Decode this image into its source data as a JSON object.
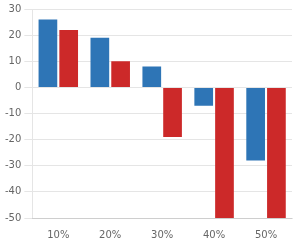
{
  "chart_data": {
    "type": "bar",
    "categories": [
      "10%",
      "20%",
      "30%",
      "40%",
      "50%"
    ],
    "series": [
      {
        "color": "#2E75B6",
        "values": [
          26,
          19,
          8,
          -7,
          -28
        ]
      },
      {
        "color": "#CC2929",
        "values": [
          22,
          10,
          -19,
          -50,
          -50
        ]
      }
    ],
    "ylim": [
      -50,
      30
    ],
    "yticks": [
      -50,
      -40,
      -30,
      -20,
      -10,
      0,
      10,
      20,
      30
    ],
    "grid": true
  }
}
